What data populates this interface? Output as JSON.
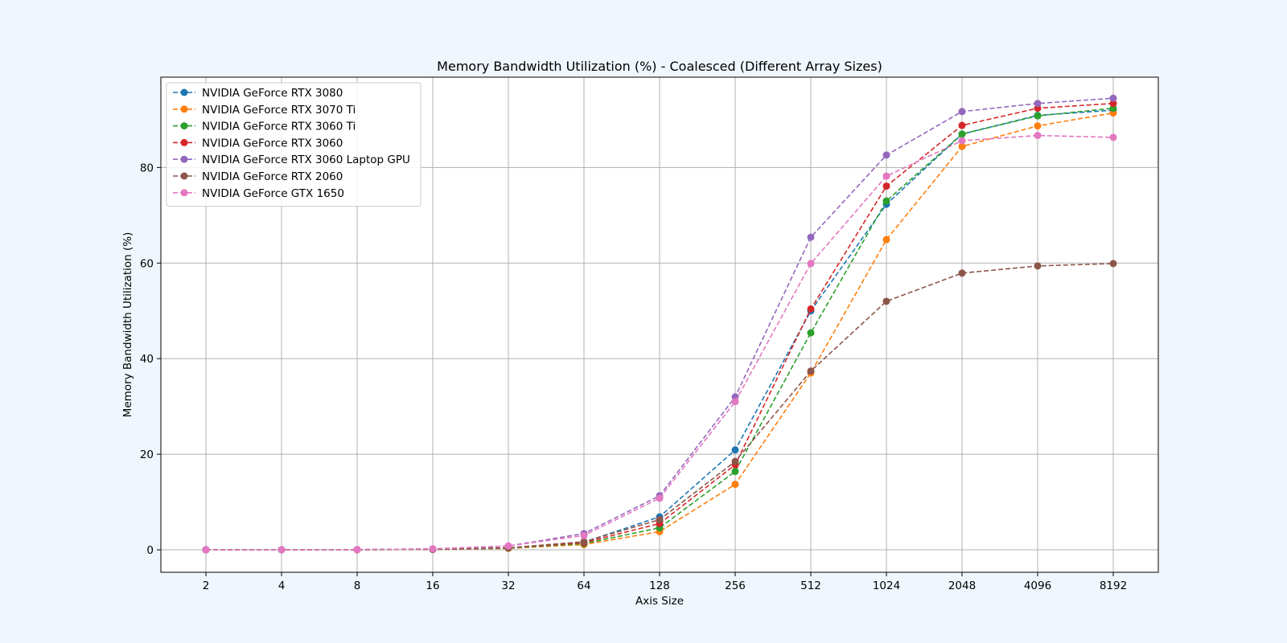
{
  "chart_data": {
    "type": "line",
    "title": "Memory Bandwidth Utilization (%) - Coalesced (Different Array Sizes)",
    "xlabel": "Axis Size",
    "ylabel": "Memory Bandwidth Utilization (%)",
    "x": [
      "2",
      "4",
      "8",
      "16",
      "32",
      "64",
      "128",
      "256",
      "512",
      "1024",
      "2048",
      "4096",
      "8192"
    ],
    "ylim": [
      -4.7,
      98.9
    ],
    "yticks": [
      0,
      20,
      40,
      60,
      80
    ],
    "grid": true,
    "legend_position": "top-left",
    "line_style": "dashed",
    "series": [
      {
        "name": "NVIDIA GeForce RTX 3080",
        "color": "#1f77b4",
        "values": [
          0.0,
          0.01,
          0.03,
          0.1,
          0.4,
          1.6,
          6.9,
          20.9,
          50.0,
          72.3,
          87.0,
          90.9,
          92.0
        ]
      },
      {
        "name": "NVIDIA GeForce RTX 3070 Ti",
        "color": "#ff7f0e",
        "values": [
          0.0,
          0.01,
          0.02,
          0.08,
          0.3,
          1.1,
          3.8,
          13.7,
          37.0,
          64.9,
          84.4,
          88.7,
          91.4
        ]
      },
      {
        "name": "NVIDIA GeForce RTX 3060 Ti",
        "color": "#2ca02c",
        "values": [
          0.0,
          0.01,
          0.02,
          0.09,
          0.35,
          1.3,
          4.6,
          16.4,
          45.4,
          73.0,
          87.0,
          90.8,
          92.4
        ]
      },
      {
        "name": "NVIDIA GeForce RTX 3060",
        "color": "#d62728",
        "values": [
          0.0,
          0.01,
          0.03,
          0.1,
          0.4,
          1.5,
          5.5,
          17.8,
          50.4,
          76.1,
          88.8,
          92.4,
          93.4
        ]
      },
      {
        "name": "NVIDIA GeForce RTX 3060 Laptop GPU",
        "color": "#9467bd",
        "values": [
          0.0,
          0.02,
          0.05,
          0.2,
          0.8,
          3.4,
          11.3,
          32.0,
          65.4,
          82.6,
          91.7,
          93.4,
          94.5
        ]
      },
      {
        "name": "NVIDIA GeForce RTX 2060",
        "color": "#8c564b",
        "values": [
          0.0,
          0.01,
          0.03,
          0.1,
          0.4,
          1.7,
          6.3,
          18.5,
          37.4,
          52.0,
          57.9,
          59.4,
          59.9
        ]
      },
      {
        "name": "NVIDIA GeForce GTX 1650",
        "color": "#e377c2",
        "values": [
          0.0,
          0.02,
          0.05,
          0.2,
          0.8,
          3.0,
          10.8,
          31.0,
          59.9,
          78.2,
          85.6,
          86.7,
          86.3
        ]
      }
    ]
  }
}
